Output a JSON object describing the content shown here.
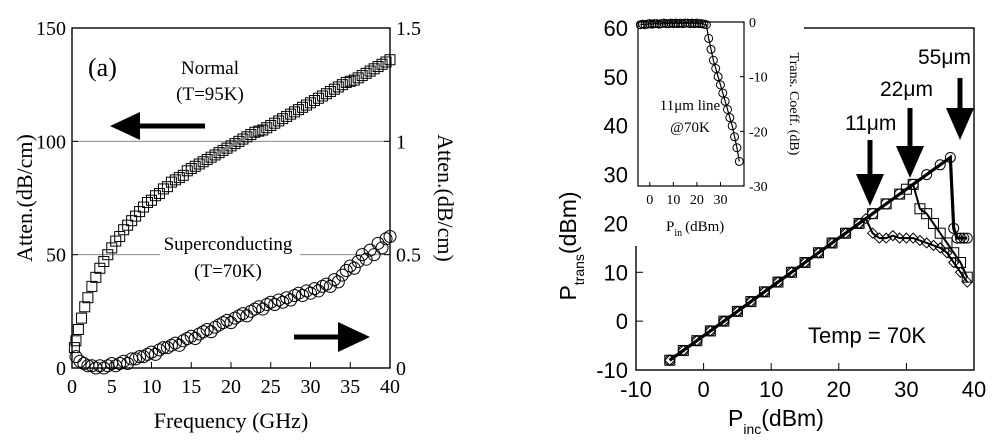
{
  "chart_data": [
    {
      "type": "scatter",
      "panel_label": "(a)",
      "xlabel": "Frequency (GHz)",
      "ylabel": "Atten.(dB/cm)",
      "y2label": "Atten.(dB/cm)",
      "xlim": [
        0,
        40
      ],
      "ylim": [
        0,
        150
      ],
      "y2lim": [
        0,
        1.5
      ],
      "x_ticks": [
        "0",
        "5",
        "10",
        "15",
        "20",
        "25",
        "30",
        "35",
        "40"
      ],
      "y_ticks": [
        "0",
        "50",
        "100",
        "150"
      ],
      "y2_ticks": [
        "0",
        "0.5",
        "1",
        "1.5"
      ],
      "grid": "horizontal",
      "series": [
        {
          "name": "Normal (T=95K)",
          "axis": "left",
          "marker": "square",
          "x": [
            0.3,
            0.5,
            0.8,
            1.2,
            1.6,
            2,
            2.5,
            3,
            3.5,
            4,
            4.5,
            5,
            5.5,
            6,
            6.5,
            7,
            7.5,
            8,
            8.5,
            9,
            9.5,
            10,
            10.5,
            11,
            11.5,
            12,
            12.5,
            13,
            13.5,
            14,
            14.5,
            15,
            15.5,
            16,
            16.5,
            17,
            17.5,
            18,
            18.5,
            19,
            19.5,
            20,
            20.5,
            21,
            21.5,
            22,
            22.5,
            23,
            23.5,
            24,
            24.5,
            25,
            25.5,
            26,
            26.5,
            27,
            27.5,
            28,
            28.5,
            29,
            29.5,
            30,
            30.5,
            31,
            31.5,
            32,
            32.5,
            33,
            33.5,
            34,
            34.5,
            35,
            35.5,
            36,
            36.5,
            37,
            37.5,
            38,
            38.5,
            39,
            39.5,
            40
          ],
          "y": [
            9,
            12,
            17,
            22,
            27,
            31,
            36,
            40,
            44,
            47,
            50,
            53,
            56,
            58,
            61,
            63,
            65,
            67,
            69,
            71,
            73,
            74,
            76,
            77,
            79,
            80,
            82,
            83,
            84,
            85,
            87,
            88,
            89,
            90,
            91,
            92,
            93,
            94,
            95,
            96,
            97,
            98,
            99,
            100,
            101,
            102,
            103,
            104,
            104.5,
            105,
            106,
            107,
            108,
            109,
            110,
            111,
            112,
            113,
            114,
            115,
            116,
            117,
            118,
            119,
            120,
            121,
            122,
            123,
            124,
            125,
            126,
            126.5,
            127,
            128,
            129,
            130,
            131,
            132,
            133,
            134,
            135,
            136
          ]
        },
        {
          "name": "Superconducting (T=70K)",
          "axis": "right",
          "marker": "circle",
          "x": [
            0.5,
            1,
            1.5,
            2,
            2.5,
            3,
            3.5,
            4,
            4.5,
            5,
            5.5,
            6,
            6.5,
            7,
            7.5,
            8,
            8.5,
            9,
            9.5,
            10,
            10.5,
            11,
            11.5,
            12,
            12.5,
            13,
            13.5,
            14,
            14.5,
            15,
            15.5,
            16,
            16.5,
            17,
            17.5,
            18,
            18.5,
            19,
            19.5,
            20,
            20.5,
            21,
            21.5,
            22,
            22.5,
            23,
            23.5,
            24,
            24.5,
            25,
            25.5,
            26,
            26.5,
            27,
            27.5,
            28,
            28.5,
            29,
            29.5,
            30,
            30.5,
            31,
            31.5,
            32,
            32.5,
            33,
            33.5,
            34,
            34.5,
            35,
            35.5,
            36,
            36.5,
            37,
            37.5,
            38,
            38.5,
            39,
            39.5,
            40
          ],
          "y": [
            0.05,
            0.03,
            0.02,
            0.01,
            0.01,
            0.0,
            0.01,
            0.0,
            0.01,
            0.02,
            0.01,
            0.02,
            0.03,
            0.02,
            0.04,
            0.04,
            0.05,
            0.05,
            0.06,
            0.07,
            0.06,
            0.08,
            0.09,
            0.09,
            0.1,
            0.11,
            0.1,
            0.12,
            0.13,
            0.14,
            0.13,
            0.15,
            0.16,
            0.17,
            0.16,
            0.18,
            0.19,
            0.2,
            0.21,
            0.2,
            0.22,
            0.23,
            0.24,
            0.23,
            0.25,
            0.26,
            0.27,
            0.26,
            0.28,
            0.29,
            0.28,
            0.3,
            0.29,
            0.31,
            0.3,
            0.32,
            0.33,
            0.32,
            0.34,
            0.33,
            0.35,
            0.34,
            0.36,
            0.37,
            0.36,
            0.39,
            0.38,
            0.41,
            0.43,
            0.45,
            0.44,
            0.47,
            0.5,
            0.48,
            0.52,
            0.5,
            0.55,
            0.53,
            0.57,
            0.58
          ]
        }
      ],
      "annotations": [
        {
          "line1": "Normal",
          "line2": "(T=95K)",
          "arrow": "left"
        },
        {
          "line1": "Superconducting",
          "line2": "(T=70K)",
          "arrow": "right"
        }
      ]
    },
    {
      "type": "line",
      "xlabel_main": "P",
      "xlabel_sub": "inc",
      "xlabel_unit": "(dBm)",
      "ylabel_main": "P",
      "ylabel_sub": "trans",
      "ylabel_unit": "(dBm)",
      "xlim": [
        -10,
        40
      ],
      "ylim": [
        -10,
        60
      ],
      "x_ticks": [
        "-10",
        "0",
        "10",
        "20",
        "30",
        "40"
      ],
      "y_ticks": [
        "-10",
        "0",
        "10",
        "20",
        "30",
        "40",
        "50",
        "60"
      ],
      "temp_label": "Temp = 70K",
      "series": [
        {
          "name": "11μm",
          "marker": "diamond",
          "x": [
            -5,
            -3,
            -1,
            1,
            3,
            5,
            7,
            9,
            11,
            13,
            15,
            17,
            19,
            21,
            23,
            24,
            25,
            26,
            27,
            28,
            29,
            30,
            31,
            32,
            33,
            34,
            35,
            36,
            37,
            38,
            39
          ],
          "y": [
            -8,
            -6,
            -4,
            -2,
            0,
            2,
            4,
            6,
            8,
            10,
            12,
            14,
            16,
            18,
            20,
            21,
            18,
            17,
            17,
            17.5,
            17,
            17,
            17,
            16.5,
            16,
            15.5,
            15,
            14,
            12,
            10,
            8
          ]
        },
        {
          "name": "22μm",
          "marker": "square",
          "x": [
            -5,
            -3,
            -1,
            1,
            3,
            5,
            7,
            9,
            11,
            13,
            15,
            17,
            19,
            21,
            23,
            25,
            27,
            29,
            30,
            31,
            32,
            33,
            34,
            35,
            36,
            37,
            38,
            39
          ],
          "y": [
            -8,
            -6,
            -4,
            -2,
            0,
            2,
            4,
            6,
            8,
            10,
            12,
            14,
            16,
            18,
            20,
            22,
            24,
            26,
            27,
            28,
            23,
            22,
            20,
            18,
            16,
            14,
            12,
            9
          ]
        },
        {
          "name": "55μm",
          "marker": "circle",
          "x": [
            -5,
            -3,
            -1,
            1,
            3,
            5,
            7,
            9,
            11,
            13,
            15,
            17,
            19,
            21,
            23,
            25,
            27,
            29,
            31,
            33,
            35,
            36.5,
            37,
            37.5,
            38,
            38.5,
            39
          ],
          "y": [
            -8,
            -6,
            -4,
            -2,
            0,
            2,
            4,
            6,
            8,
            10,
            12,
            14,
            16,
            18,
            20,
            22,
            24,
            26,
            28,
            30,
            32,
            33.5,
            19,
            17,
            17,
            17,
            17
          ]
        }
      ],
      "arrow_labels": [
        "11μm",
        "22μm",
        "55μm"
      ],
      "inset": {
        "type": "line",
        "xlabel_main": "P",
        "xlabel_sub": "in",
        "xlabel_unit": "(dBm)",
        "ylabel": "Trans. Coeff. (dB)",
        "xlim": [
          -5,
          40
        ],
        "ylim": [
          -30,
          0
        ],
        "x_ticks": [
          "0",
          "10",
          "20",
          "30"
        ],
        "y_ticks": [
          "0",
          "-10",
          "-20",
          "-30"
        ],
        "note_line1": "11μm line",
        "note_line2": "@70K",
        "series": [
          {
            "marker": "circle",
            "x": [
              -4,
              -3,
              -2,
              -1,
              0,
              1,
              2,
              3,
              4,
              5,
              6,
              7,
              8,
              9,
              10,
              11,
              12,
              13,
              14,
              15,
              16,
              17,
              18,
              19,
              20,
              21,
              22,
              23,
              24,
              25,
              26,
              27,
              28,
              29,
              30,
              31,
              32,
              33,
              34,
              35,
              36,
              37,
              38
            ],
            "y": [
              -0.5,
              -0.4,
              -0.5,
              -0.4,
              -0.3,
              -0.4,
              -0.3,
              -0.3,
              -0.4,
              -0.3,
              -0.2,
              -0.3,
              -0.3,
              -0.2,
              -0.3,
              -0.2,
              -0.3,
              -0.2,
              -0.3,
              -0.2,
              -0.2,
              -0.3,
              -0.2,
              -0.3,
              -0.2,
              -0.3,
              -0.3,
              -0.4,
              -0.5,
              -3,
              -5,
              -7,
              -8.5,
              -10,
              -11.5,
              -13,
              -14.5,
              -16,
              -17.5,
              -19,
              -21,
              -23,
              -25.5
            ]
          }
        ]
      }
    }
  ]
}
